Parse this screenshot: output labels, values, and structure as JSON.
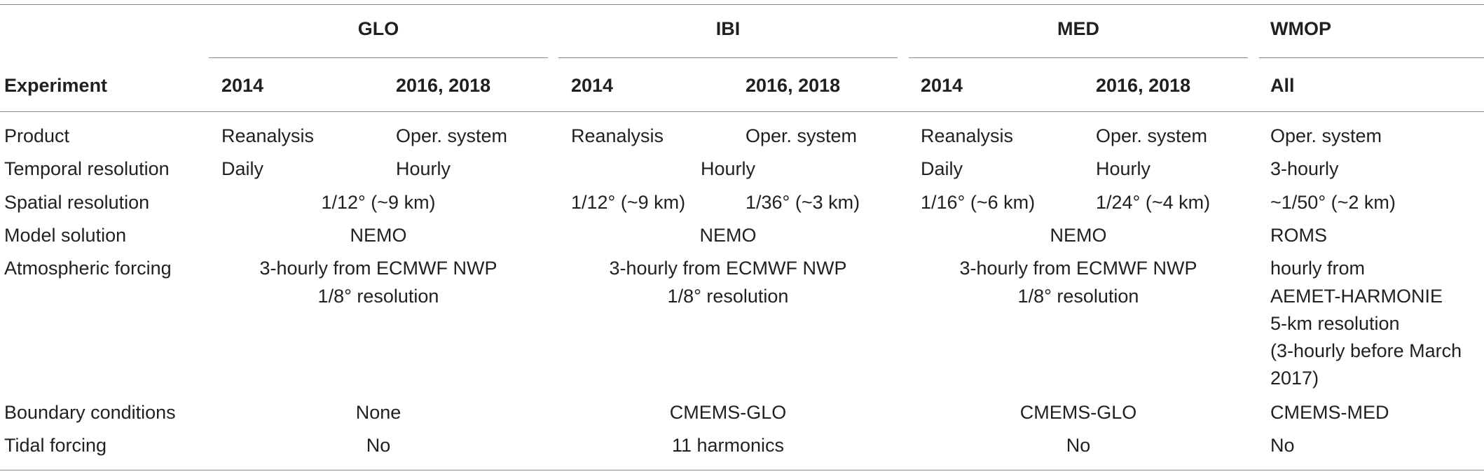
{
  "header": {
    "regions": [
      "GLO",
      "IBI",
      "MED",
      "WMOP"
    ],
    "experiment_label": "Experiment",
    "years": {
      "glo_a": "2014",
      "glo_b": "2016, 2018",
      "ibi_a": "2014",
      "ibi_b": "2016, 2018",
      "med_a": "2014",
      "med_b": "2016, 2018",
      "wmop": "All"
    }
  },
  "rows": {
    "product": {
      "label": "Product",
      "glo_a": "Reanalysis",
      "glo_b": "Oper. system",
      "ibi_a": "Reanalysis",
      "ibi_b": "Oper. system",
      "med_a": "Reanalysis",
      "med_b": "Oper. system",
      "wmop": "Oper. system"
    },
    "temporal": {
      "label": "Temporal resolution",
      "glo_a": "Daily",
      "glo_b": "Hourly",
      "ibi": "Hourly",
      "med_a": "Daily",
      "med_b": "Hourly",
      "wmop": "3-hourly"
    },
    "spatial": {
      "label": "Spatial resolution",
      "glo": "1/12° (~9 km)",
      "ibi_a": "1/12° (~9 km)",
      "ibi_b": "1/36° (~3 km)",
      "med_a": "1/16° (~6 km)",
      "med_b": "1/24° (~4 km)",
      "wmop": "~1/50° (~2 km)"
    },
    "model": {
      "label": "Model solution",
      "glo": "NEMO",
      "ibi": "NEMO",
      "med": "NEMO",
      "wmop": "ROMS"
    },
    "atmos": {
      "label": "Atmospheric forcing",
      "glo_l1": "3-hourly from ECMWF NWP",
      "glo_l2": "1/8° resolution",
      "ibi_l1": "3-hourly from ECMWF NWP",
      "ibi_l2": "1/8° resolution",
      "med_l1": "3-hourly from ECMWF NWP",
      "med_l2": "1/8° resolution",
      "wmop_l1": "hourly from",
      "wmop_l2": "AEMET-HARMONIE",
      "wmop_l3": "5-km resolution",
      "wmop_l4": "(3-hourly before March",
      "wmop_l5": "2017)"
    },
    "boundary": {
      "label": "Boundary conditions",
      "glo": "None",
      "ibi": "CMEMS-GLO",
      "med": "CMEMS-GLO",
      "wmop": "CMEMS-MED"
    },
    "tidal": {
      "label": "Tidal forcing",
      "glo": "No",
      "ibi": "11 harmonics",
      "med": "No",
      "wmop": "No"
    }
  }
}
